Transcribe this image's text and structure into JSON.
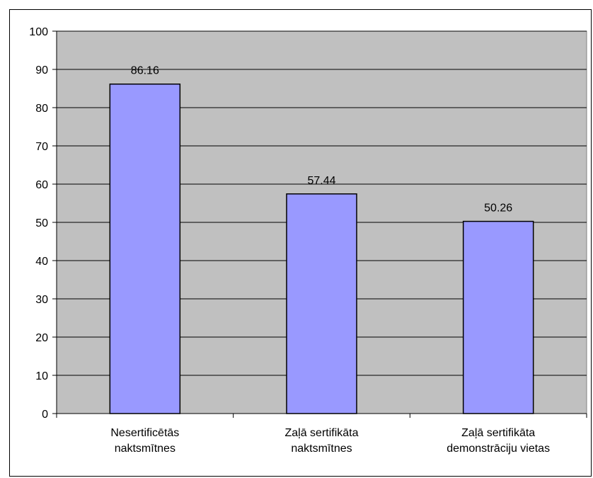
{
  "chart_data": {
    "type": "bar",
    "title": "",
    "xlabel": "",
    "ylabel": "",
    "categories": [
      [
        "Nesertificētās",
        "naktsmītnes"
      ],
      [
        "Zaļā sertifikāta",
        "naktsmītnes"
      ],
      [
        "Zaļā sertifikāta",
        "demonstrāciju vietas"
      ]
    ],
    "values": [
      86.16,
      57.44,
      50.26
    ],
    "data_labels": [
      "86.16",
      "57.44",
      "50.26"
    ],
    "ylim": [
      0,
      100
    ],
    "yticks": [
      0,
      10,
      20,
      30,
      40,
      50,
      60,
      70,
      80,
      90,
      100
    ],
    "grid": true,
    "legend": "none",
    "colors": {
      "plot_background": "#c0c0c0",
      "bar_fill": "#9999ff",
      "bar_stroke": "#000000",
      "gridline": "#000000"
    }
  }
}
